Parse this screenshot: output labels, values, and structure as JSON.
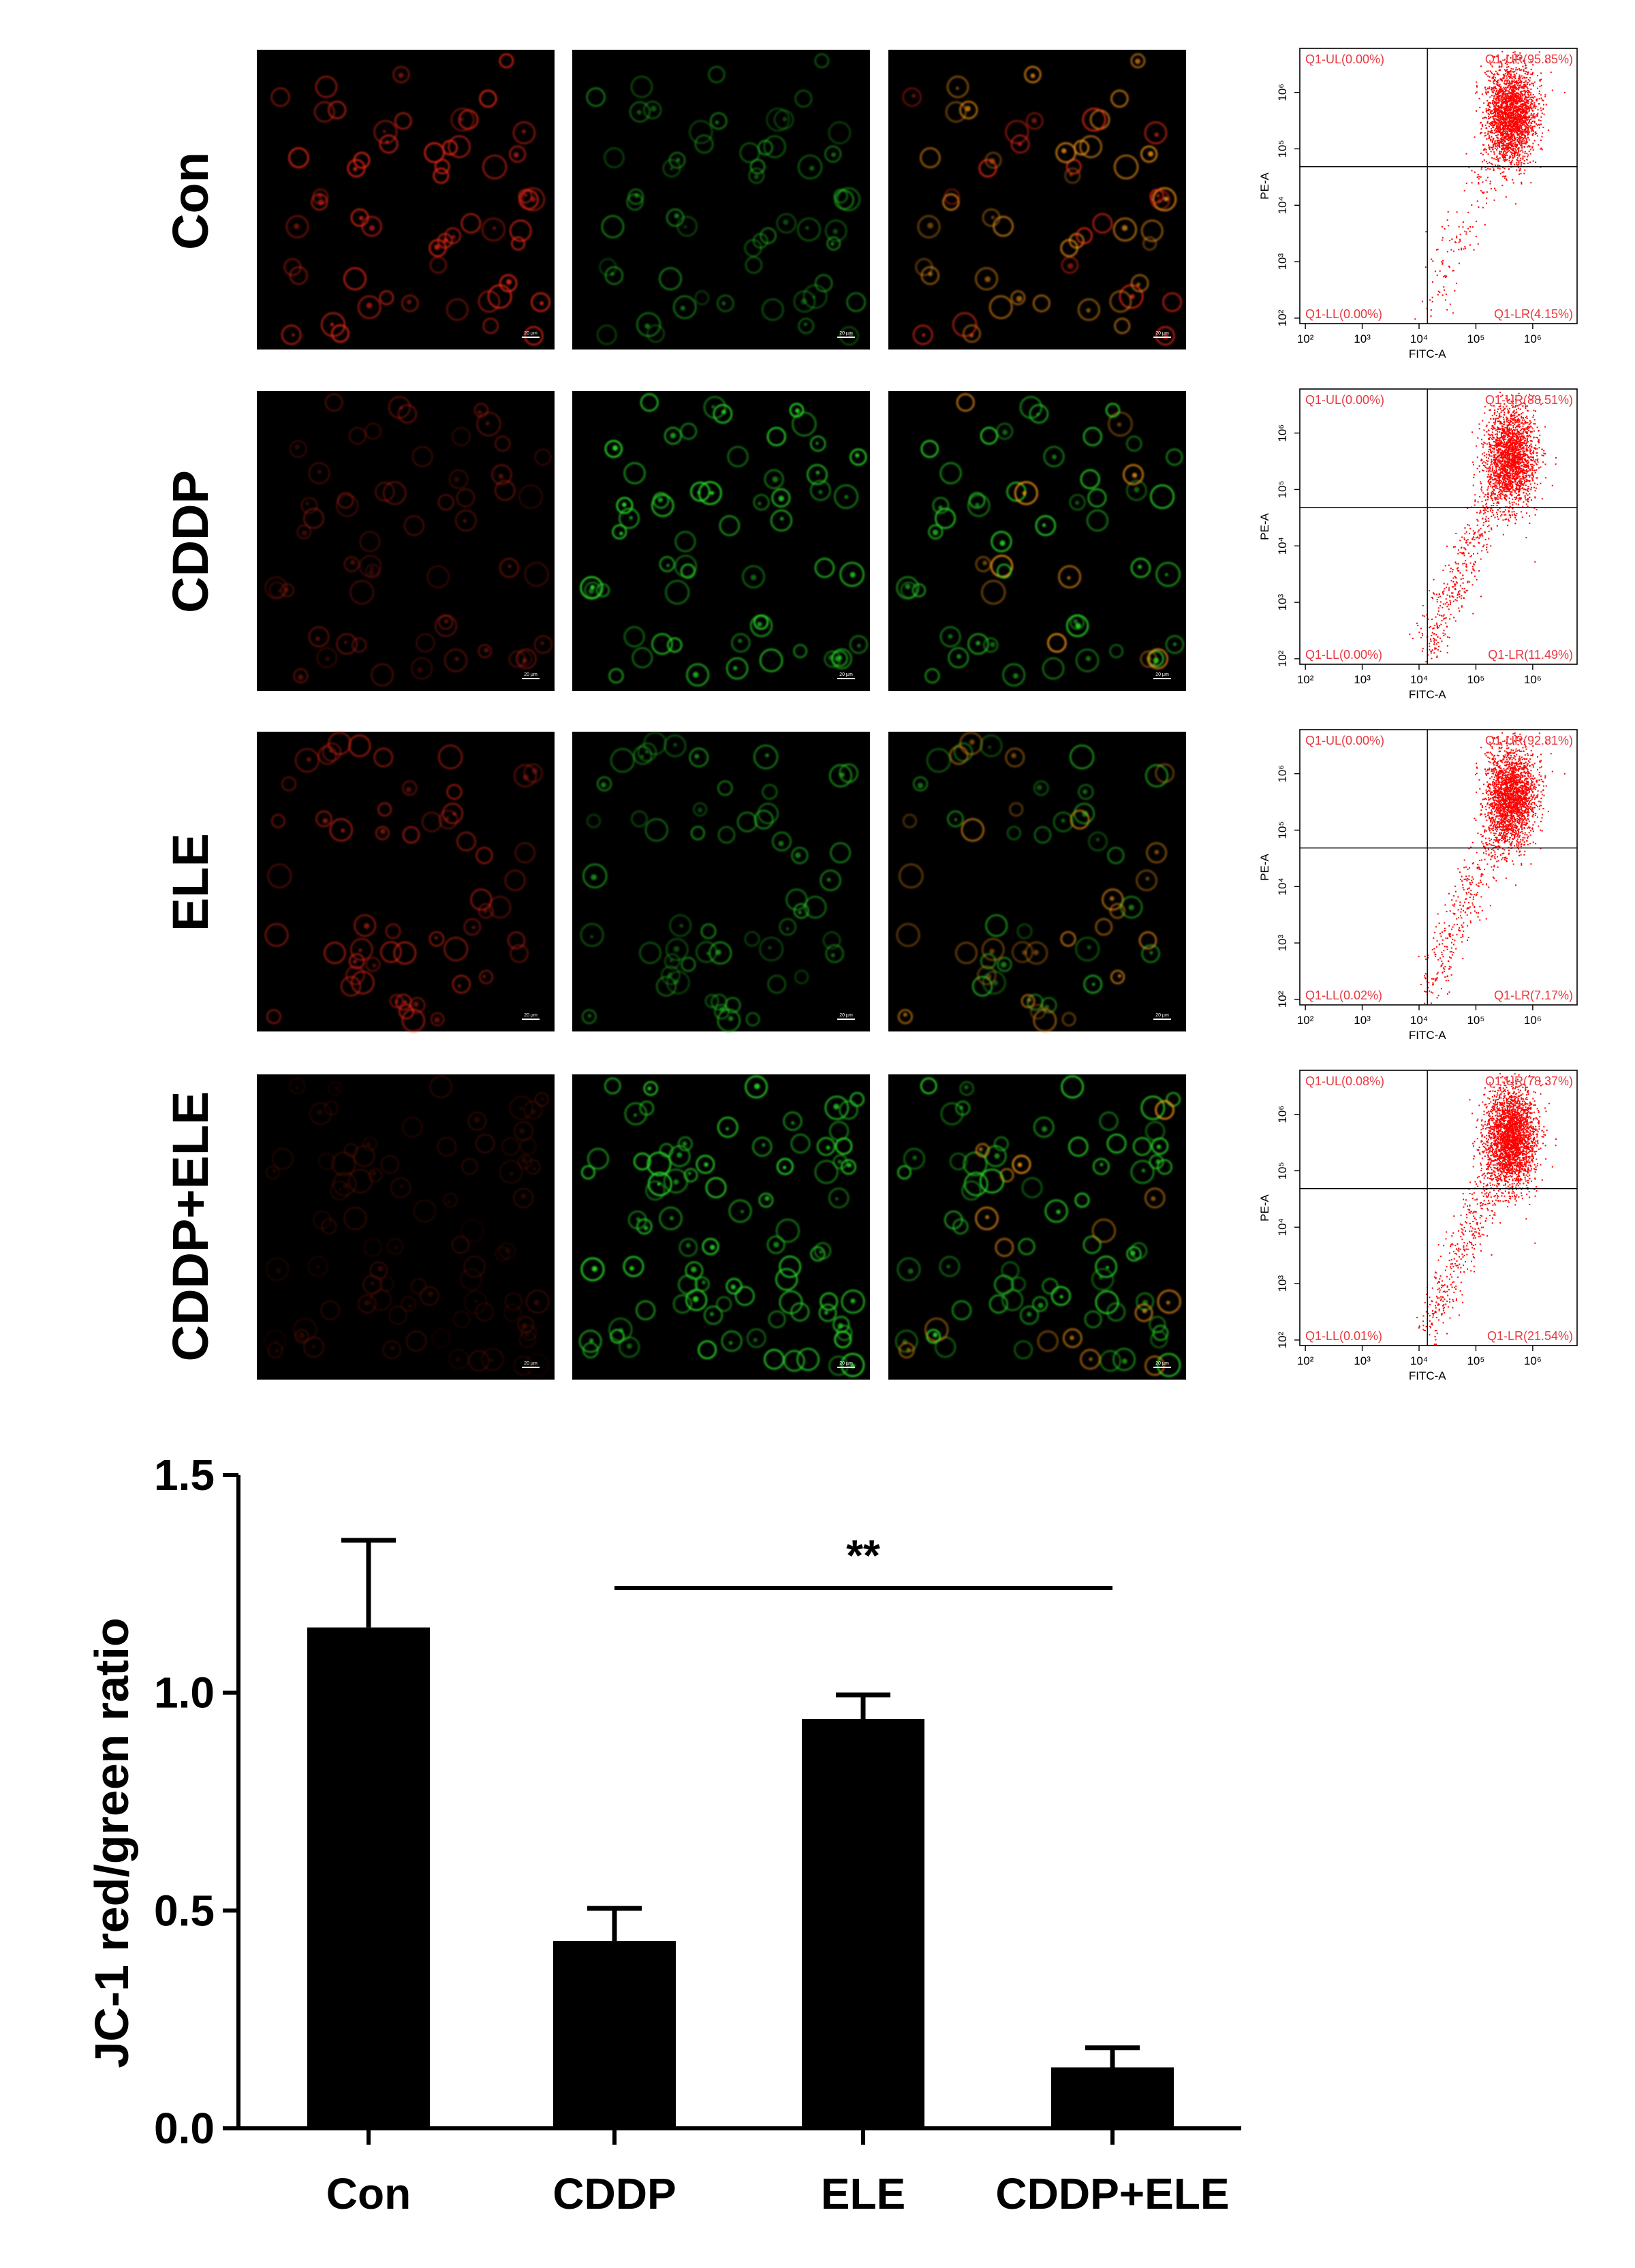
{
  "figure": {
    "rows": [
      {
        "label": "Con",
        "flow": {
          "ul": "Q1-UL(0.00%)",
          "ur": "Q1-UR(95.85%)",
          "ll": "Q1-LL(0.00%)",
          "lr": "Q1-LR(4.15%)"
        }
      },
      {
        "label": "CDDP",
        "flow": {
          "ul": "Q1-UL(0.00%)",
          "ur": "Q1-UR(88.51%)",
          "ll": "Q1-LL(0.00%)",
          "lr": "Q1-LR(11.49%)"
        }
      },
      {
        "label": "ELE",
        "flow": {
          "ul": "Q1-UL(0.00%)",
          "ur": "Q1-UR(92.81%)",
          "ll": "Q1-LL(0.02%)",
          "lr": "Q1-LR(7.17%)"
        }
      },
      {
        "label": "CDDP+ELE",
        "flow": {
          "ul": "Q1-UL(0.08%)",
          "ur": "Q1-UR(78.37%)",
          "ll": "Q1-LL(0.01%)",
          "lr": "Q1-LR(21.54%)"
        }
      }
    ],
    "scale_bar_label": "20 µm",
    "flow_axes": {
      "xlabel": "FITC-A",
      "ylabel": "PE-A",
      "xticks": [
        "10²",
        "10³",
        "10⁴",
        "10⁵",
        "10⁶"
      ],
      "yticks": [
        "10²",
        "10³",
        "10⁴",
        "10⁵",
        "10⁶"
      ]
    },
    "colors": {
      "red_channel": "#ff2a1a",
      "green_channel": "#29e029",
      "merge_orange": "#ff9a1a",
      "flow_dots": "#ff0000",
      "flow_text": "#e8393f",
      "bars": "#000000"
    }
  },
  "chart_data": {
    "type": "bar",
    "categories": [
      "Con",
      "CDDP",
      "ELE",
      "CDDP+ELE"
    ],
    "values": [
      1.15,
      0.43,
      0.94,
      0.14
    ],
    "errors": [
      0.2,
      0.075,
      0.055,
      0.045
    ],
    "ylabel": "JC-1 red/green ratio",
    "xlabel": "",
    "ylim": [
      0,
      1.5
    ],
    "yticks": [
      "0.0",
      "0.5",
      "1.0",
      "1.5"
    ],
    "significance": {
      "from": "CDDP",
      "to": "CDDP+ELE",
      "label": "**"
    }
  }
}
